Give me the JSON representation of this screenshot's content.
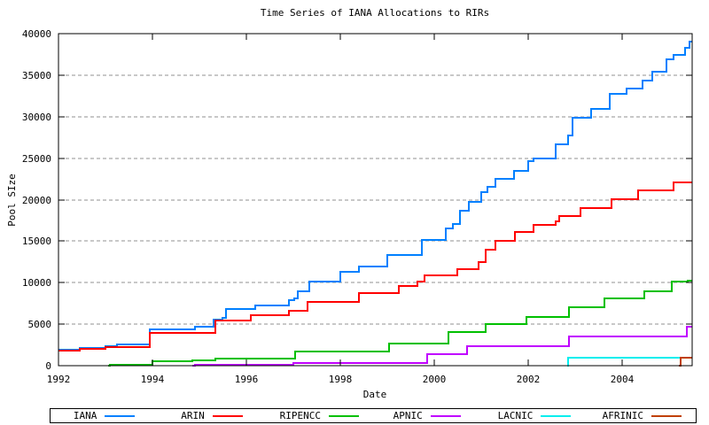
{
  "chart_data": {
    "type": "line",
    "style": "steps-post",
    "title": "Time Series of IANA Allocations to RIRs",
    "xlabel": "Date",
    "ylabel": "Pool SIze",
    "xlim": [
      1992,
      2005.5
    ],
    "ylim": [
      0,
      40000
    ],
    "x_ticks": [
      "1992",
      "1994",
      "1996",
      "1998",
      "2000",
      "2002",
      "2004"
    ],
    "x_tick_values": [
      1992,
      1994,
      1996,
      1998,
      2000,
      2002,
      2004
    ],
    "y_ticks": [
      "0",
      "5000",
      "10000",
      "15000",
      "20000",
      "25000",
      "30000",
      "35000",
      "40000"
    ],
    "y_tick_values": [
      0,
      5000,
      10000,
      15000,
      20000,
      25000,
      30000,
      35000,
      40000
    ],
    "grid": "horizontal-dashed",
    "grid_color": "#909090",
    "legend_position": "bottom",
    "series": [
      {
        "name": "IANA",
        "color": "#0080ff",
        "points": [
          [
            1992.0,
            1950
          ],
          [
            1992.45,
            2100
          ],
          [
            1993.0,
            2350
          ],
          [
            1993.25,
            2600
          ],
          [
            1993.95,
            4400
          ],
          [
            1994.9,
            4700
          ],
          [
            1995.3,
            5500
          ],
          [
            1995.5,
            5800
          ],
          [
            1995.57,
            6800
          ],
          [
            1996.2,
            7250
          ],
          [
            1996.9,
            7900
          ],
          [
            1997.02,
            8100
          ],
          [
            1997.1,
            8950
          ],
          [
            1997.35,
            10100
          ],
          [
            1998.0,
            11300
          ],
          [
            1998.4,
            12000
          ],
          [
            1999.0,
            13350
          ],
          [
            1999.75,
            15100
          ],
          [
            2000.25,
            16500
          ],
          [
            2000.4,
            17100
          ],
          [
            2000.55,
            18700
          ],
          [
            2000.75,
            19700
          ],
          [
            2001.0,
            20900
          ],
          [
            2001.13,
            21500
          ],
          [
            2001.3,
            22550
          ],
          [
            2001.7,
            23450
          ],
          [
            2002.0,
            24650
          ],
          [
            2002.12,
            24950
          ],
          [
            2002.6,
            26650
          ],
          [
            2002.85,
            27700
          ],
          [
            2002.95,
            29850
          ],
          [
            2003.35,
            30900
          ],
          [
            2003.75,
            32700
          ],
          [
            2004.1,
            33400
          ],
          [
            2004.45,
            34400
          ],
          [
            2004.65,
            35400
          ],
          [
            2004.95,
            36900
          ],
          [
            2005.1,
            37400
          ],
          [
            2005.35,
            38300
          ],
          [
            2005.45,
            39000
          ]
        ]
      },
      {
        "name": "ARIN",
        "color": "#ff0000",
        "points": [
          [
            1992.0,
            1850
          ],
          [
            1992.45,
            2060
          ],
          [
            1993.0,
            2280
          ],
          [
            1993.95,
            3900
          ],
          [
            1995.35,
            5480
          ],
          [
            1996.1,
            6100
          ],
          [
            1996.9,
            6650
          ],
          [
            1997.31,
            7730
          ],
          [
            1998.41,
            8800
          ],
          [
            1999.25,
            9590
          ],
          [
            1999.65,
            10100
          ],
          [
            1999.8,
            10850
          ],
          [
            2000.5,
            11600
          ],
          [
            2000.95,
            12450
          ],
          [
            2001.1,
            13990
          ],
          [
            2001.31,
            15060
          ],
          [
            2001.72,
            16060
          ],
          [
            2002.12,
            16950
          ],
          [
            2002.6,
            17420
          ],
          [
            2002.67,
            18020
          ],
          [
            2003.13,
            19020
          ],
          [
            2003.79,
            20010
          ],
          [
            2004.35,
            21080
          ],
          [
            2005.11,
            22040
          ]
        ]
      },
      {
        "name": "RIPENCC",
        "color": "#00c000",
        "points": [
          [
            1993.05,
            0
          ],
          [
            1993.1,
            150
          ],
          [
            1994.0,
            530
          ],
          [
            1994.85,
            680
          ],
          [
            1995.35,
            900
          ],
          [
            1997.05,
            1740
          ],
          [
            1999.05,
            2640
          ],
          [
            2000.3,
            4060
          ],
          [
            2001.1,
            5020
          ],
          [
            2001.97,
            5900
          ],
          [
            2002.88,
            7080
          ],
          [
            2003.63,
            8090
          ],
          [
            2004.48,
            8980
          ],
          [
            2005.07,
            10110
          ],
          [
            2005.4,
            10230
          ]
        ]
      },
      {
        "name": "APNIC",
        "color": "#c000ff",
        "points": [
          [
            1994.85,
            0
          ],
          [
            1994.9,
            60
          ],
          [
            1997.0,
            300
          ],
          [
            1999.85,
            1350
          ],
          [
            2000.7,
            2390
          ],
          [
            2002.88,
            3500
          ],
          [
            2005.38,
            4650
          ]
        ]
      },
      {
        "name": "LACNIC",
        "color": "#00eeee",
        "points": [
          [
            2002.84,
            0
          ],
          [
            2002.86,
            980
          ]
        ]
      },
      {
        "name": "AFRINIC",
        "color": "#c04000",
        "points": [
          [
            2005.22,
            0
          ],
          [
            2005.25,
            960
          ]
        ]
      }
    ]
  }
}
